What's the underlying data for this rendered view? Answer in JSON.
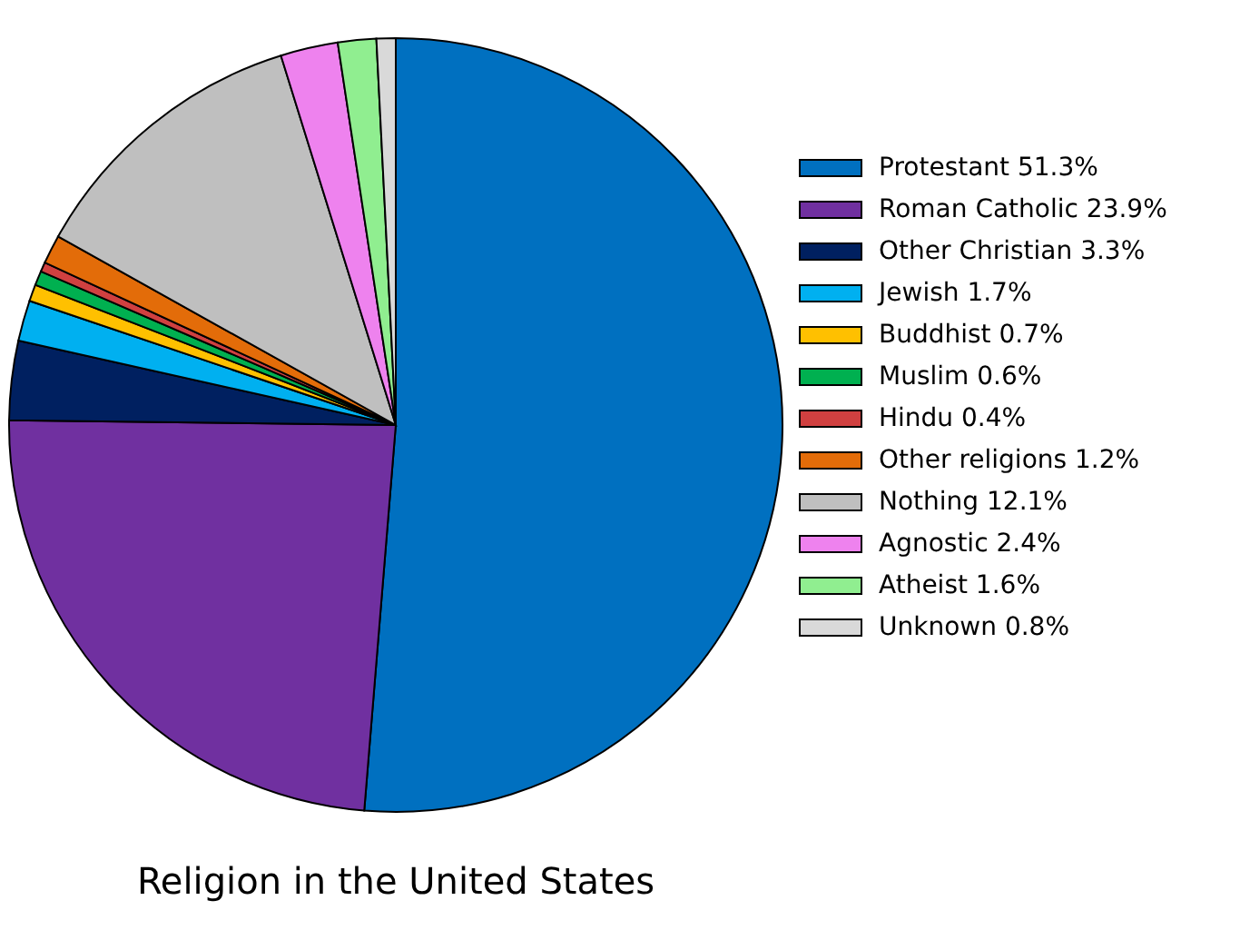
{
  "chart_data": {
    "type": "pie",
    "title": "Religion in the United States",
    "categories": [
      "Protestant 51.3%",
      "Roman Catholic 23.9%",
      "Other Christian 3.3%",
      "Jewish 1.7%",
      "Buddhist 0.7%",
      "Muslim 0.6%",
      "Hindu 0.4%",
      "Other religions 1.2%",
      "Nothing 12.1%",
      "Agnostic 2.4%",
      "Atheist 1.6%",
      "Unknown 0.8%"
    ],
    "values": [
      51.3,
      23.9,
      3.3,
      1.7,
      0.7,
      0.6,
      0.4,
      1.2,
      12.1,
      2.4,
      1.6,
      0.8
    ],
    "colors": [
      "#0070c0",
      "#7030a0",
      "#002060",
      "#00b0f0",
      "#ffc000",
      "#00b050",
      "#d04040",
      "#e36c09",
      "#bfbfbf",
      "#ee82ee",
      "#90ee90",
      "#d9d9d9"
    ],
    "legend": "right"
  }
}
